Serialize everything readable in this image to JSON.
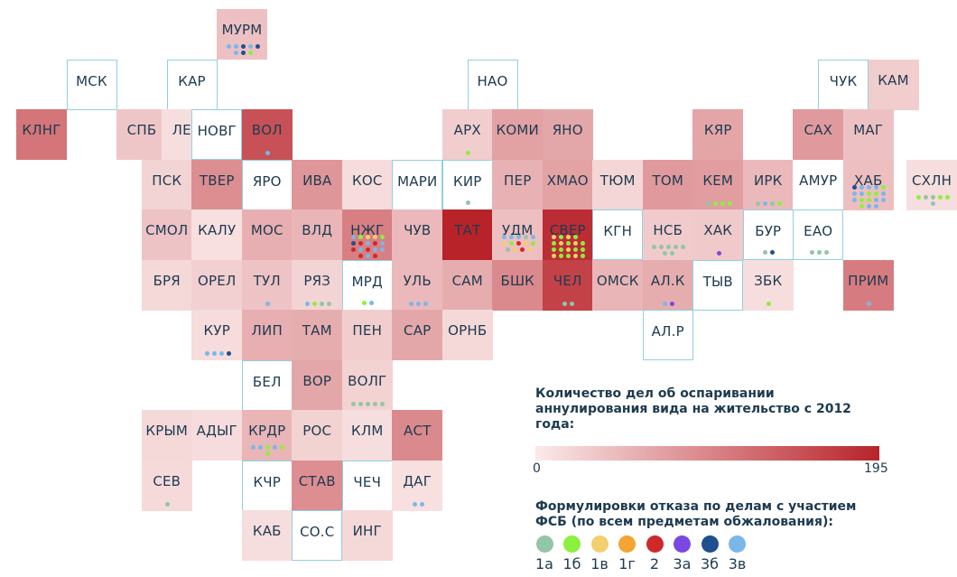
{
  "max_value": 195,
  "color_scale": {
    "min_color": "#fbeaea",
    "max_color": "#b8232a"
  },
  "legend": {
    "title": "Количество дел об оспаривании аннулирования вида на жительство с 2012 года:",
    "min": "0",
    "max": "195",
    "dots_title": "Формулировки отказа по делам с участием ФСБ (по всем предметам обжалования):",
    "categories": [
      {
        "code": "1a",
        "label": "1а",
        "color": "#93c5a8"
      },
      {
        "code": "1b",
        "label": "1б",
        "color": "#8cf03e"
      },
      {
        "code": "1v",
        "label": "1в",
        "color": "#f3cf6f"
      },
      {
        "code": "1g",
        "label": "1г",
        "color": "#f3a433"
      },
      {
        "code": "2",
        "label": "2",
        "color": "#cf2828"
      },
      {
        "code": "3a",
        "label": "3а",
        "color": "#7a48e0"
      },
      {
        "code": "3b",
        "label": "3б",
        "color": "#1f4f8c"
      },
      {
        "code": "3v",
        "label": "3в",
        "color": "#7ab7e8"
      }
    ]
  },
  "regions": [
    {
      "id": "murm",
      "label": "МУРМ",
      "col": 4,
      "row": 0,
      "value": 40,
      "dots": [
        "3v",
        "3v",
        "3b",
        "3v",
        "3b",
        "3v",
        "3b",
        "1b"
      ]
    },
    {
      "id": "msk",
      "label": "МСК",
      "col": 1,
      "row": 1,
      "value": 0,
      "outlined": true,
      "dots": []
    },
    {
      "id": "kar",
      "label": "КАР",
      "col": 3,
      "row": 1,
      "value": 0,
      "outlined": true,
      "dots": []
    },
    {
      "id": "nao",
      "label": "НАО",
      "col": 9,
      "row": 1,
      "value": 0,
      "outlined": true,
      "dots": []
    },
    {
      "id": "chuk",
      "label": "ЧУК",
      "col": 16,
      "row": 1,
      "value": 0,
      "outlined": true,
      "dots": []
    },
    {
      "id": "kam",
      "label": "КАМ",
      "col": 17,
      "row": 1,
      "value": 28,
      "dots": []
    },
    {
      "id": "klng",
      "label": "КЛНГ",
      "col": 0,
      "row": 2,
      "value": 115,
      "dots": []
    },
    {
      "id": "spb",
      "label": "СПБ",
      "col": 2,
      "row": 2,
      "value": 35,
      "dots": []
    },
    {
      "id": "len",
      "label": "ЛЕН",
      "col": 2.9,
      "row": 2,
      "value": 12,
      "dots": []
    },
    {
      "id": "novg",
      "label": "НОВГ",
      "col": 3.5,
      "row": 2,
      "value": 0,
      "outlined": true,
      "dots": []
    },
    {
      "id": "vol",
      "label": "ВОЛ",
      "col": 4.5,
      "row": 2,
      "value": 150,
      "dots": [
        "3v"
      ]
    },
    {
      "id": "arh",
      "label": "АРХ",
      "col": 8.5,
      "row": 2,
      "value": 28,
      "dots": [
        "1b"
      ]
    },
    {
      "id": "komi",
      "label": "КОМИ",
      "col": 9.5,
      "row": 2,
      "value": 72,
      "dots": []
    },
    {
      "id": "yano",
      "label": "ЯНО",
      "col": 10.5,
      "row": 2,
      "value": 66,
      "dots": []
    },
    {
      "id": "kyar",
      "label": "КЯР",
      "col": 13.5,
      "row": 2,
      "value": 68,
      "dots": []
    },
    {
      "id": "sah",
      "label": "САХ",
      "col": 15.5,
      "row": 2,
      "value": 78,
      "dots": []
    },
    {
      "id": "mag",
      "label": "МАГ",
      "col": 16.5,
      "row": 2,
      "value": 40,
      "dots": []
    },
    {
      "id": "psk",
      "label": "ПСК",
      "col": 2.5,
      "row": 3,
      "value": 22,
      "dots": []
    },
    {
      "id": "tver",
      "label": "ТВЕР",
      "col": 3.5,
      "row": 3,
      "value": 90,
      "dots": []
    },
    {
      "id": "yaro",
      "label": "ЯРО",
      "col": 4.5,
      "row": 3,
      "value": 0,
      "outlined": true,
      "dots": []
    },
    {
      "id": "iva",
      "label": "ИВА",
      "col": 5.5,
      "row": 3,
      "value": 82,
      "dots": []
    },
    {
      "id": "kos",
      "label": "КОС",
      "col": 6.5,
      "row": 3,
      "value": 14,
      "dots": []
    },
    {
      "id": "mari",
      "label": "МАРИ",
      "col": 7.5,
      "row": 3,
      "value": 0,
      "outlined": true,
      "dots": []
    },
    {
      "id": "kir",
      "label": "КИР",
      "col": 8.5,
      "row": 3,
      "value": 0,
      "outlined": true,
      "dots": [
        "1a"
      ]
    },
    {
      "id": "per",
      "label": "ПЕР",
      "col": 9.5,
      "row": 3,
      "value": 56,
      "dots": []
    },
    {
      "id": "hmao",
      "label": "ХМАО",
      "col": 10.5,
      "row": 3,
      "value": 70,
      "dots": []
    },
    {
      "id": "tyum",
      "label": "ТЮМ",
      "col": 11.5,
      "row": 3,
      "value": 20,
      "dots": []
    },
    {
      "id": "tom",
      "label": "ТОМ",
      "col": 12.5,
      "row": 3,
      "value": 78,
      "dots": []
    },
    {
      "id": "kem",
      "label": "КЕМ",
      "col": 13.5,
      "row": 3,
      "value": 75,
      "dots": [
        "1a",
        "1b",
        "1b",
        "1b"
      ]
    },
    {
      "id": "irk",
      "label": "ИРК",
      "col": 14.5,
      "row": 3,
      "value": 48,
      "dots": [
        "1a",
        "3v",
        "1a",
        "1b"
      ]
    },
    {
      "id": "amur",
      "label": "АМУР",
      "col": 15.5,
      "row": 3,
      "value": 0,
      "dots": []
    },
    {
      "id": "hab",
      "label": "ХАБ",
      "col": 16.5,
      "row": 3,
      "value": 42,
      "dots": [
        "3b",
        "3v",
        "3v",
        "3v",
        "1b",
        "3v",
        "3v",
        "1b",
        "1b",
        "3v",
        "3v",
        "1b",
        "1b",
        "3v",
        "3v",
        "1b",
        "3v",
        "3v"
      ]
    },
    {
      "id": "shln",
      "label": "СХЛН",
      "col": 17.8,
      "row": 3,
      "value": 12,
      "dots": [
        "1b",
        "1a",
        "1a",
        "1b",
        "1b",
        "1a"
      ]
    },
    {
      "id": "smol",
      "label": "СМОЛ",
      "col": 2.5,
      "row": 4,
      "value": 38,
      "dots": []
    },
    {
      "id": "kalu",
      "label": "КАЛУ",
      "col": 3.5,
      "row": 4,
      "value": 10,
      "dots": []
    },
    {
      "id": "mos",
      "label": "МОС",
      "col": 4.5,
      "row": 4,
      "value": 58,
      "dots": []
    },
    {
      "id": "vld",
      "label": "ВЛД",
      "col": 5.5,
      "row": 4,
      "value": 52,
      "dots": []
    },
    {
      "id": "nzhg",
      "label": "НЖГ",
      "col": 6.5,
      "row": 4,
      "value": 105,
      "dots": [
        "3v",
        "1b",
        "1v",
        "1v",
        "1b",
        "3b",
        "2",
        "3v",
        "2",
        "3v",
        "2",
        "3v",
        "2",
        "3v",
        "3v",
        "2",
        "3v",
        "2"
      ]
    },
    {
      "id": "chuv",
      "label": "ЧУВ",
      "col": 7.5,
      "row": 4,
      "value": 48,
      "dots": []
    },
    {
      "id": "tat",
      "label": "ТАТ",
      "col": 8.5,
      "row": 4,
      "value": 195,
      "dots": []
    },
    {
      "id": "udm",
      "label": "УДМ",
      "col": 9.5,
      "row": 4,
      "value": 42,
      "dots": [
        "3v",
        "3v",
        "3v",
        "1a",
        "3v",
        "1v",
        "1b",
        "2",
        "1v",
        "1b",
        "1a",
        "1v",
        "2",
        "1v"
      ]
    },
    {
      "id": "sver",
      "label": "СВЕР",
      "col": 10.5,
      "row": 4,
      "value": 185,
      "dots": [
        "1v",
        "1b",
        "1v",
        "1b",
        "2",
        "1b",
        "1v",
        "1b",
        "1v",
        "1b",
        "1b",
        "1b",
        "1v",
        "1b",
        "1b",
        "1v",
        "1b",
        "1b",
        "1v",
        "1b",
        "1b",
        "1b",
        "1b",
        "1b",
        "1b",
        "1v",
        "1a",
        "1a",
        "1b",
        "1a",
        "1b",
        "3v"
      ]
    },
    {
      "id": "kgn",
      "label": "КГН",
      "col": 11.5,
      "row": 4,
      "value": 0,
      "outlined": true,
      "dots": []
    },
    {
      "id": "nsb",
      "label": "НСБ",
      "col": 12.5,
      "row": 4,
      "value": 30,
      "dots": [
        "1a",
        "1a",
        "1a",
        "1a",
        "1a",
        "1a",
        "1a"
      ]
    },
    {
      "id": "hak",
      "label": "ХАК",
      "col": 13.5,
      "row": 4,
      "value": 32,
      "dots": [
        "3a"
      ]
    },
    {
      "id": "bur",
      "label": "БУР",
      "col": 14.5,
      "row": 4,
      "value": 0,
      "outlined": true,
      "dots": [
        "1a",
        "3b"
      ]
    },
    {
      "id": "eao",
      "label": "ЕАО",
      "col": 15.5,
      "row": 4,
      "value": 0,
      "outlined": true,
      "dots": [
        "1a",
        "1a",
        "1a"
      ]
    },
    {
      "id": "brya",
      "label": "БРЯ",
      "col": 2.5,
      "row": 5,
      "value": 18,
      "dots": []
    },
    {
      "id": "orel",
      "label": "ОРЕЛ",
      "col": 3.5,
      "row": 5,
      "value": 26,
      "dots": []
    },
    {
      "id": "tul",
      "label": "ТУЛ",
      "col": 4.5,
      "row": 5,
      "value": 38,
      "dots": [
        "3v"
      ]
    },
    {
      "id": "ryaz",
      "label": "РЯЗ",
      "col": 5.5,
      "row": 5,
      "value": 22,
      "dots": [
        "3v",
        "1b",
        "1a",
        "1a"
      ]
    },
    {
      "id": "mrd",
      "label": "МРД",
      "col": 6.5,
      "row": 5,
      "value": 0,
      "outlined": true,
      "dots": [
        "1b",
        "3v"
      ]
    },
    {
      "id": "ul",
      "label": "УЛЬ",
      "col": 7.5,
      "row": 5,
      "value": 48,
      "dots": [
        "3v",
        "3v",
        "3v"
      ]
    },
    {
      "id": "sam",
      "label": "САМ",
      "col": 8.5,
      "row": 5,
      "value": 60,
      "dots": []
    },
    {
      "id": "bshk",
      "label": "БШК",
      "col": 9.5,
      "row": 5,
      "value": 95,
      "dots": []
    },
    {
      "id": "chel",
      "label": "ЧЕЛ",
      "col": 10.5,
      "row": 5,
      "value": 165,
      "dots": [
        "1a",
        "1a"
      ]
    },
    {
      "id": "omsk",
      "label": "ОМСК",
      "col": 11.5,
      "row": 5,
      "value": 52,
      "dots": []
    },
    {
      "id": "alk",
      "label": "АЛ.К",
      "col": 12.5,
      "row": 5,
      "value": 60,
      "dots": [
        "3v",
        "3a"
      ]
    },
    {
      "id": "tyv",
      "label": "ТЫВ",
      "col": 13.5,
      "row": 5,
      "value": 0,
      "outlined": true,
      "dots": []
    },
    {
      "id": "zbk",
      "label": "ЗБК",
      "col": 14.5,
      "row": 5,
      "value": 12,
      "dots": [
        "1b"
      ]
    },
    {
      "id": "prim",
      "label": "ПРИМ",
      "col": 16.5,
      "row": 5,
      "value": 108,
      "dots": [
        "3v"
      ]
    },
    {
      "id": "kur",
      "label": "КУР",
      "col": 3.5,
      "row": 6,
      "value": 14,
      "dots": [
        "3v",
        "3v",
        "3v",
        "3b"
      ]
    },
    {
      "id": "lip",
      "label": "ЛИП",
      "col": 4.5,
      "row": 6,
      "value": 58,
      "dots": []
    },
    {
      "id": "tam",
      "label": "ТАМ",
      "col": 5.5,
      "row": 6,
      "value": 60,
      "dots": []
    },
    {
      "id": "pen",
      "label": "ПЕН",
      "col": 6.5,
      "row": 6,
      "value": 28,
      "dots": []
    },
    {
      "id": "sar",
      "label": "САР",
      "col": 7.5,
      "row": 6,
      "value": 66,
      "dots": []
    },
    {
      "id": "ornb",
      "label": "ОРНБ",
      "col": 8.5,
      "row": 6,
      "value": 18,
      "dots": []
    },
    {
      "id": "alr",
      "label": "АЛ.Р",
      "col": 12.5,
      "row": 6,
      "value": 0,
      "outlined": true,
      "dots": []
    },
    {
      "id": "bel",
      "label": "БЕЛ",
      "col": 4.5,
      "row": 7,
      "value": 0,
      "outlined": true,
      "dots": []
    },
    {
      "id": "vor",
      "label": "ВОР",
      "col": 5.5,
      "row": 7,
      "value": 66,
      "dots": []
    },
    {
      "id": "volg",
      "label": "ВОЛГ",
      "col": 6.5,
      "row": 7,
      "value": 24,
      "dots": [
        "1a",
        "1a",
        "1a",
        "1a",
        "1a"
      ]
    },
    {
      "id": "krym",
      "label": "КРЫМ",
      "col": 2.5,
      "row": 8,
      "value": 18,
      "dots": []
    },
    {
      "id": "adyg",
      "label": "АДЫГ",
      "col": 3.5,
      "row": 8,
      "value": 14,
      "dots": []
    },
    {
      "id": "krdr",
      "label": "КРДР",
      "col": 4.5,
      "row": 8,
      "value": 52,
      "dots": [
        "3v",
        "3v",
        "1b",
        "3v",
        "1b",
        "1b"
      ]
    },
    {
      "id": "ros",
      "label": "РОС",
      "col": 5.5,
      "row": 8,
      "value": 24,
      "dots": []
    },
    {
      "id": "klm",
      "label": "КЛМ",
      "col": 6.5,
      "row": 8,
      "value": 12,
      "dots": []
    },
    {
      "id": "ast",
      "label": "АСТ",
      "col": 7.5,
      "row": 8,
      "value": 95,
      "dots": []
    },
    {
      "id": "sev",
      "label": "СЕВ",
      "col": 2.5,
      "row": 9,
      "value": 16,
      "dots": [
        "1a"
      ]
    },
    {
      "id": "kchr",
      "label": "КЧР",
      "col": 4.5,
      "row": 9,
      "value": 0,
      "outlined": true,
      "dots": []
    },
    {
      "id": "stav",
      "label": "СТАВ",
      "col": 5.5,
      "row": 9,
      "value": 90,
      "dots": []
    },
    {
      "id": "chech",
      "label": "ЧЕЧ",
      "col": 6.5,
      "row": 9,
      "value": 0,
      "outlined": true,
      "dots": []
    },
    {
      "id": "dag",
      "label": "ДАГ",
      "col": 7.5,
      "row": 9,
      "value": 10,
      "dots": [
        "3v",
        "3v"
      ]
    },
    {
      "id": "kab",
      "label": "КАБ",
      "col": 4.5,
      "row": 10,
      "value": 12,
      "dots": []
    },
    {
      "id": "sos",
      "label": "СО.С",
      "col": 5.5,
      "row": 10,
      "value": 0,
      "outlined": true,
      "dots": []
    },
    {
      "id": "ing",
      "label": "ИНГ",
      "col": 6.5,
      "row": 10,
      "value": 18,
      "dots": []
    }
  ]
}
